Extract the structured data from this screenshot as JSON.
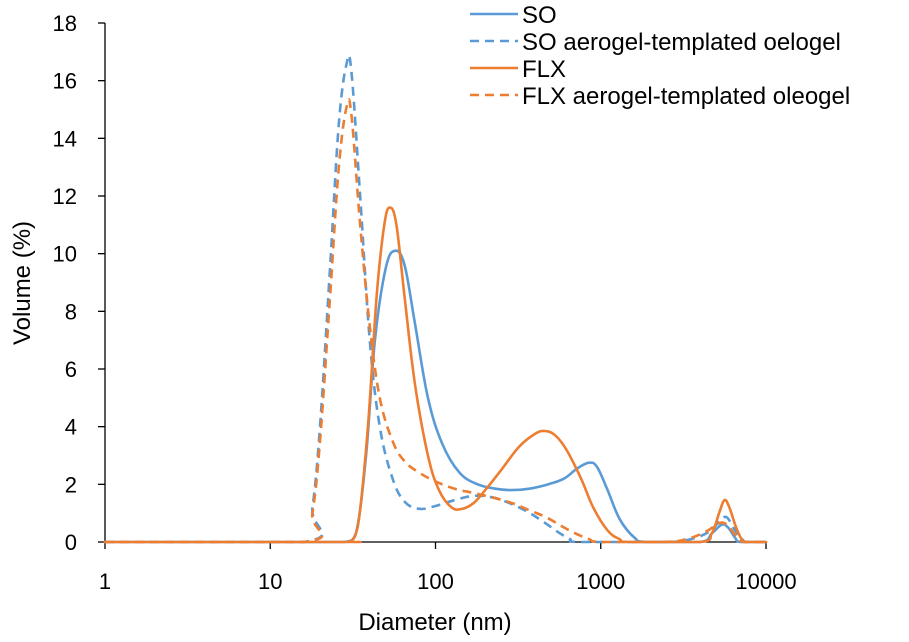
{
  "chart_data": {
    "type": "line",
    "xlabel": "Diameter (nm)",
    "ylabel": "Volume (%)",
    "x_scale": "log",
    "xlim": [
      1,
      10000
    ],
    "ylim": [
      0,
      18
    ],
    "x_ticks": [
      1,
      10,
      100,
      1000,
      10000
    ],
    "x_tick_labels": [
      "1",
      "10",
      "100",
      "1000",
      "10000"
    ],
    "y_ticks": [
      0,
      2,
      4,
      6,
      8,
      10,
      12,
      14,
      16,
      18
    ],
    "y_tick_labels": [
      "0",
      "2",
      "4",
      "6",
      "8",
      "10",
      "12",
      "14",
      "16",
      "18"
    ],
    "grid": false,
    "legend_position": "top-right",
    "series": [
      {
        "name": "SO",
        "color": "#5B9BD5",
        "dash": "solid",
        "points": [
          [
            1,
            0
          ],
          [
            16,
            0
          ],
          [
            28,
            0
          ],
          [
            33,
            0.3
          ],
          [
            38,
            3
          ],
          [
            43,
            7
          ],
          [
            50,
            9.5
          ],
          [
            57,
            10.1
          ],
          [
            65,
            9.6
          ],
          [
            75,
            7.6
          ],
          [
            90,
            5
          ],
          [
            110,
            3.4
          ],
          [
            140,
            2.4
          ],
          [
            180,
            2
          ],
          [
            230,
            1.85
          ],
          [
            290,
            1.8
          ],
          [
            370,
            1.85
          ],
          [
            480,
            2
          ],
          [
            600,
            2.2
          ],
          [
            720,
            2.55
          ],
          [
            850,
            2.75
          ],
          [
            950,
            2.6
          ],
          [
            1100,
            1.8
          ],
          [
            1300,
            0.8
          ],
          [
            1600,
            0.15
          ],
          [
            1900,
            0
          ],
          [
            4000,
            0
          ],
          [
            4700,
            0.3
          ],
          [
            5400,
            0.6
          ],
          [
            5900,
            0.5
          ],
          [
            6500,
            0.15
          ],
          [
            7000,
            0
          ],
          [
            10000,
            0
          ]
        ]
      },
      {
        "name": "SO aerogel-templated oelogel",
        "color": "#5B9BD5",
        "dash": "dashed",
        "points": [
          [
            1,
            0
          ],
          [
            16,
            0
          ],
          [
            18,
            1.2
          ],
          [
            20,
            4
          ],
          [
            23,
            9.5
          ],
          [
            26,
            14.5
          ],
          [
            29,
            16.6
          ],
          [
            31,
            16.3
          ],
          [
            35,
            12
          ],
          [
            40,
            7
          ],
          [
            46,
            4
          ],
          [
            55,
            2.2
          ],
          [
            65,
            1.4
          ],
          [
            80,
            1.15
          ],
          [
            100,
            1.25
          ],
          [
            130,
            1.45
          ],
          [
            170,
            1.6
          ],
          [
            220,
            1.55
          ],
          [
            280,
            1.35
          ],
          [
            360,
            1.05
          ],
          [
            450,
            0.7
          ],
          [
            550,
            0.35
          ],
          [
            650,
            0.1
          ],
          [
            750,
            0
          ],
          [
            2500,
            0
          ],
          [
            3500,
            0.1
          ],
          [
            4500,
            0.35
          ],
          [
            5300,
            0.75
          ],
          [
            5800,
            0.85
          ],
          [
            6500,
            0.4
          ],
          [
            7300,
            0.05
          ],
          [
            7700,
            0
          ],
          [
            10000,
            0
          ]
        ]
      },
      {
        "name": "FLX",
        "color": "#ED7D31",
        "dash": "solid",
        "points": [
          [
            1,
            0
          ],
          [
            26,
            0
          ],
          [
            30,
            0
          ],
          [
            34,
            0.6
          ],
          [
            39,
            4
          ],
          [
            44,
            8.5
          ],
          [
            49,
            11
          ],
          [
            53,
            11.6
          ],
          [
            58,
            11
          ],
          [
            65,
            8.5
          ],
          [
            75,
            5.5
          ],
          [
            90,
            3
          ],
          [
            105,
            1.8
          ],
          [
            125,
            1.2
          ],
          [
            145,
            1.15
          ],
          [
            170,
            1.35
          ],
          [
            200,
            1.8
          ],
          [
            250,
            2.5
          ],
          [
            320,
            3.3
          ],
          [
            400,
            3.75
          ],
          [
            460,
            3.85
          ],
          [
            530,
            3.7
          ],
          [
            620,
            3.2
          ],
          [
            760,
            2.2
          ],
          [
            900,
            1.2
          ],
          [
            1100,
            0.4
          ],
          [
            1300,
            0.1
          ],
          [
            1500,
            0
          ],
          [
            4000,
            0
          ],
          [
            4700,
            0.3
          ],
          [
            5200,
            1
          ],
          [
            5600,
            1.45
          ],
          [
            6000,
            1.2
          ],
          [
            6600,
            0.5
          ],
          [
            7200,
            0.05
          ],
          [
            7600,
            0
          ],
          [
            10000,
            0
          ]
        ]
      },
      {
        "name": "FLX aerogel-templated oleogel",
        "color": "#ED7D31",
        "dash": "dashed",
        "points": [
          [
            1,
            0
          ],
          [
            16,
            0
          ],
          [
            18,
            1
          ],
          [
            20,
            3.5
          ],
          [
            23,
            8.5
          ],
          [
            26,
            13
          ],
          [
            29,
            15.1
          ],
          [
            31,
            14.8
          ],
          [
            35,
            11
          ],
          [
            40,
            7.5
          ],
          [
            46,
            5
          ],
          [
            55,
            3.5
          ],
          [
            65,
            2.8
          ],
          [
            80,
            2.4
          ],
          [
            100,
            2.1
          ],
          [
            130,
            1.85
          ],
          [
            170,
            1.7
          ],
          [
            220,
            1.55
          ],
          [
            290,
            1.35
          ],
          [
            370,
            1.1
          ],
          [
            470,
            0.85
          ],
          [
            580,
            0.55
          ],
          [
            700,
            0.3
          ],
          [
            850,
            0.1
          ],
          [
            1000,
            0
          ],
          [
            2400,
            0
          ],
          [
            3300,
            0.1
          ],
          [
            4300,
            0.35
          ],
          [
            5200,
            0.65
          ],
          [
            5800,
            0.6
          ],
          [
            6500,
            0.25
          ],
          [
            7300,
            0
          ],
          [
            10000,
            0
          ]
        ]
      }
    ]
  }
}
